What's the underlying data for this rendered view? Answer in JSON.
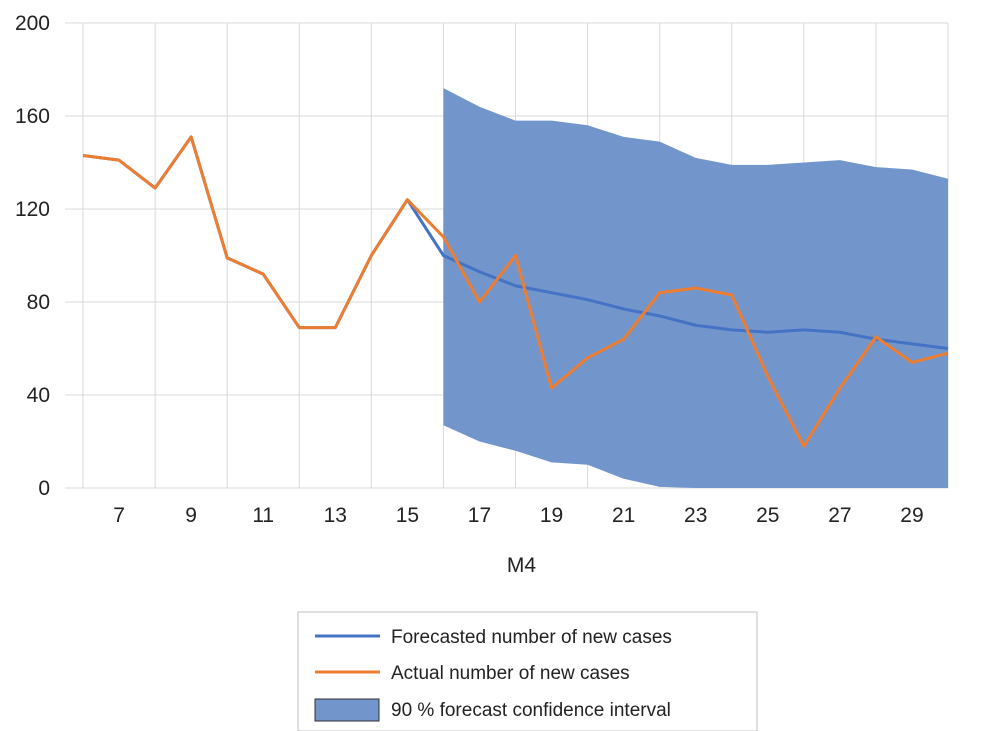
{
  "chart_data": {
    "type": "line",
    "xlabel": "M4",
    "ylabel": "",
    "ylim": [
      0,
      200
    ],
    "xlim": [
      5.5,
      30
    ],
    "y_ticks": [
      0,
      40,
      80,
      120,
      160,
      200
    ],
    "x_ticks": [
      7,
      9,
      11,
      13,
      15,
      17,
      19,
      21,
      23,
      25,
      27,
      29
    ],
    "grid": "vertical-and-horizontal",
    "legend_position": "bottom",
    "colors": {
      "forecast": "#4472C4",
      "actual": "#ED7D31",
      "interval": "#7295CC",
      "grid": "#D9D9D9"
    },
    "series": [
      {
        "name": "Forecasted number of new cases",
        "kind": "line",
        "x": [
          6,
          7,
          8,
          9,
          10,
          11,
          12,
          13,
          14,
          15,
          16,
          17,
          18,
          19,
          20,
          21,
          22,
          23,
          24,
          25,
          26,
          27,
          28,
          29,
          30
        ],
        "values": [
          143,
          141,
          129,
          151,
          99,
          92,
          69,
          69,
          100,
          124,
          100,
          93,
          87,
          84,
          81,
          77,
          74,
          70,
          68,
          67,
          68,
          67,
          64,
          62,
          60
        ]
      },
      {
        "name": "Actual number of new cases",
        "kind": "line",
        "x": [
          6,
          7,
          8,
          9,
          10,
          11,
          12,
          13,
          14,
          15,
          16,
          17,
          18,
          19,
          20,
          21,
          22,
          23,
          24,
          25,
          26,
          27,
          28,
          29,
          30
        ],
        "values": [
          143,
          141,
          129,
          151,
          99,
          92,
          69,
          69,
          100,
          124,
          108,
          80,
          100,
          43,
          56,
          64,
          84,
          86,
          83,
          48,
          18,
          43,
          65,
          54,
          58
        ]
      },
      {
        "name": "90 % forecast confidence interval",
        "kind": "band",
        "x": [
          16,
          17,
          18,
          19,
          20,
          21,
          22,
          23,
          24,
          25,
          26,
          27,
          28,
          29,
          30
        ],
        "upper": [
          172,
          164,
          158,
          158,
          156,
          151,
          149,
          142,
          139,
          139,
          140,
          141,
          138,
          137,
          133
        ],
        "lower": [
          27,
          20,
          16,
          11,
          10,
          4,
          0.5,
          0,
          0,
          0,
          0,
          0,
          0,
          0,
          0
        ]
      }
    ]
  }
}
